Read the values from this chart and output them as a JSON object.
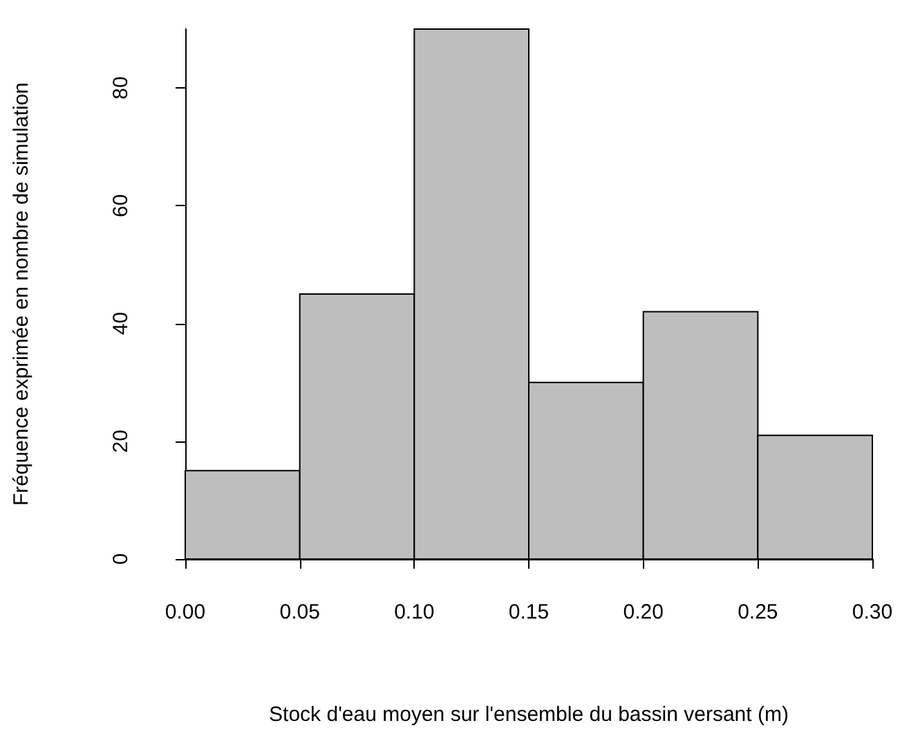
{
  "chart_data": {
    "type": "histogram",
    "xlabel": "Stock d'eau moyen sur l'ensemble du bassin versant (m)",
    "ylabel": "Fréquence exprimée en nombre de simulation",
    "bins": [
      0,
      0.05,
      0.1,
      0.15,
      0.2,
      0.25,
      0.3
    ],
    "values": [
      15,
      45,
      90,
      30,
      42,
      21
    ],
    "color": "#bebebe",
    "xlim": [
      0,
      0.3
    ],
    "xticks": [
      {
        "value": 0,
        "label": "0.00"
      },
      {
        "value": 0.05,
        "label": "0.05"
      },
      {
        "value": 0.1,
        "label": "0.10"
      },
      {
        "value": 0.15,
        "label": "0.15"
      },
      {
        "value": 0.2,
        "label": "0.20"
      },
      {
        "value": 0.25,
        "label": "0.25"
      },
      {
        "value": 0.3,
        "label": "0.30"
      }
    ],
    "ylim": [
      0,
      90
    ],
    "yticks": [
      0,
      20,
      40,
      60,
      80
    ],
    "grid": false
  }
}
